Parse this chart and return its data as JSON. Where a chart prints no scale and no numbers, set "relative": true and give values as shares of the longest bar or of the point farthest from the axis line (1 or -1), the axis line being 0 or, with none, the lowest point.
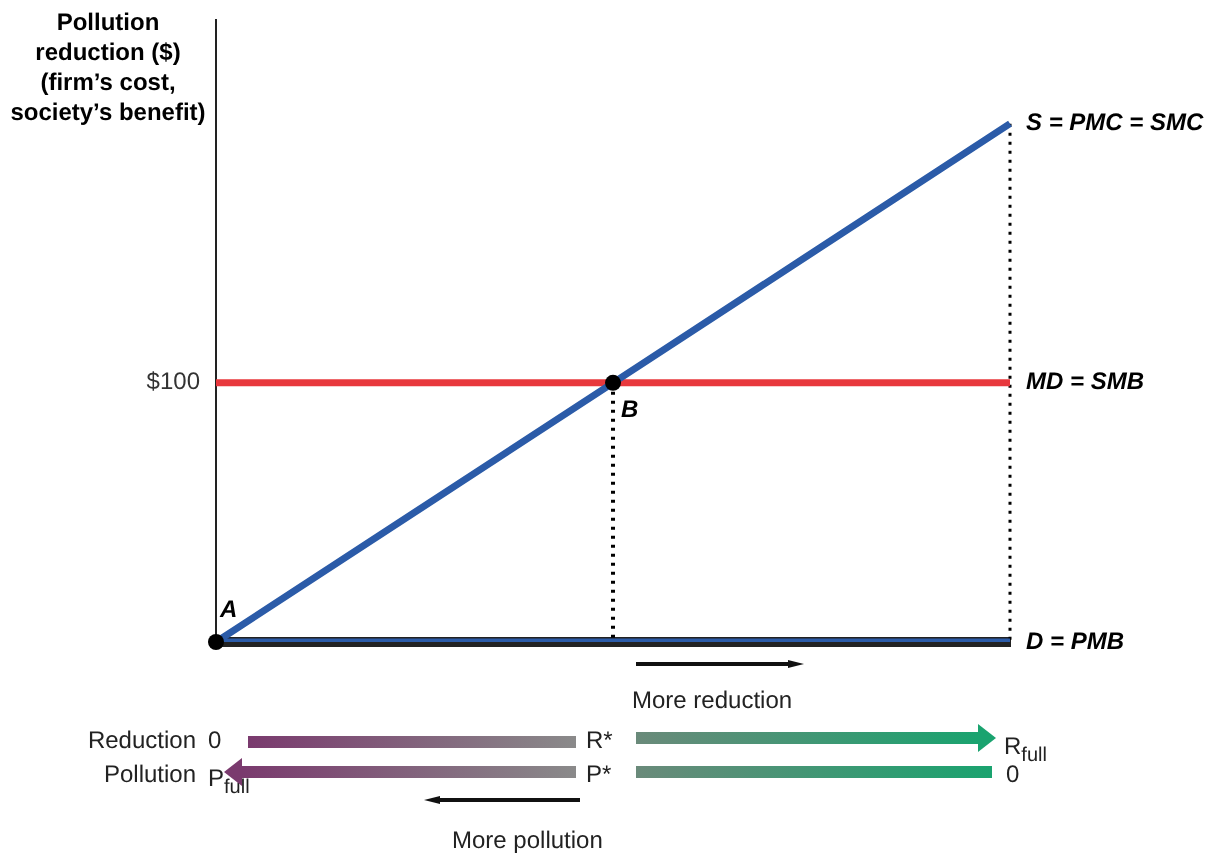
{
  "chart_data": {
    "type": "line",
    "ylabel": "Pollution reduction ($) (firm’s cost, society’s benefit)",
    "relative": true,
    "categories": [
      null,
      null,
      null
    ],
    "legend": false,
    "line_style": "solid",
    "series": [
      {
        "name": "S = PMC = SMC",
        "color": "#2b5ba8",
        "values": [
          0,
          0.5,
          1
        ]
      },
      {
        "name": "MD = SMB",
        "color": "#e8383d",
        "values": [
          0.5,
          0.5,
          0.5
        ]
      },
      {
        "name": "D = PMB",
        "color": "#2b5ba8",
        "values": [
          0,
          0,
          0
        ]
      }
    ],
    "annotations": [
      "A",
      "B",
      "More reduction",
      "Reduction",
      "0",
      "R*",
      "R$_{full}$",
      "Pollution",
      "P$_{full}$",
      "P*",
      "0",
      "More pollution",
      "$100"
    ]
  }
}
